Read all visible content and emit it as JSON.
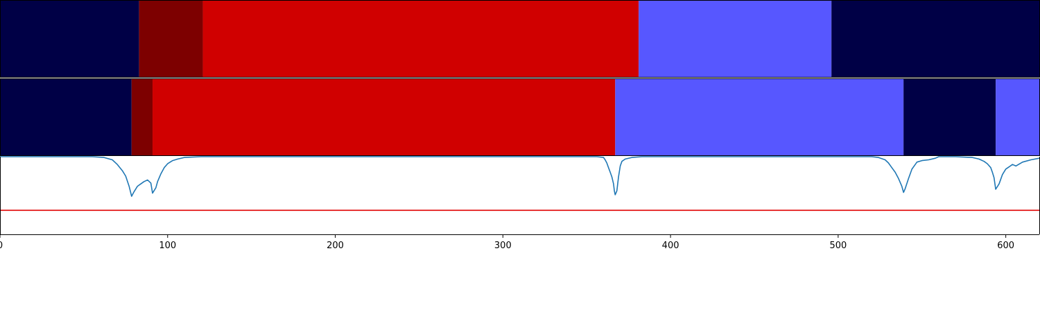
{
  "chart_data": {
    "type": "segmentation-timeline",
    "xlim": [
      0,
      620
    ],
    "x_ticks": [
      0,
      100,
      200,
      300,
      400,
      500,
      600
    ],
    "x_tick_labels": [
      "0",
      "100",
      "200",
      "300",
      "400",
      "500",
      "600"
    ],
    "colors": {
      "navy": "#000046",
      "darkred": "#7d0000",
      "red": "#d00000",
      "blue": "#5757ff",
      "line": "#1f77b4",
      "threshold": "#e00000"
    },
    "tracks": [
      {
        "segments": [
          {
            "start": 0,
            "end": 83,
            "color": "navy"
          },
          {
            "start": 83,
            "end": 121,
            "color": "darkred"
          },
          {
            "start": 121,
            "end": 381,
            "color": "red"
          },
          {
            "start": 381,
            "end": 496,
            "color": "blue"
          },
          {
            "start": 496,
            "end": 620,
            "color": "navy"
          }
        ]
      },
      {
        "segments": [
          {
            "start": 0,
            "end": 78.5,
            "color": "navy"
          },
          {
            "start": 78.5,
            "end": 91,
            "color": "darkred"
          },
          {
            "start": 91,
            "end": 367,
            "color": "red"
          },
          {
            "start": 367,
            "end": 539,
            "color": "blue"
          },
          {
            "start": 539,
            "end": 594,
            "color": "navy"
          },
          {
            "start": 594,
            "end": 620,
            "color": "blue"
          }
        ]
      }
    ],
    "signal": {
      "ylim": [
        0,
        1
      ],
      "threshold": 0.31,
      "x": [
        0,
        55,
        62,
        67,
        70,
        73,
        75,
        77,
        78.5,
        80,
        82,
        84,
        86,
        88,
        90,
        91,
        93,
        94,
        96,
        98,
        100,
        103,
        106,
        110,
        120,
        300,
        356,
        360,
        361,
        362,
        363,
        364,
        365,
        366,
        366.5,
        367,
        368,
        369,
        370,
        371,
        373,
        377,
        383,
        400,
        500,
        520,
        524,
        528,
        530,
        532,
        534,
        536,
        538,
        539,
        540,
        542,
        544,
        546,
        547,
        550,
        554,
        558,
        560,
        570,
        580,
        584,
        587,
        589,
        591,
        592,
        593,
        594,
        596,
        598,
        600,
        602,
        604,
        606,
        610,
        615,
        620
      ],
      "y": [
        1,
        1,
        0.99,
        0.96,
        0.9,
        0.82,
        0.75,
        0.62,
        0.49,
        0.55,
        0.62,
        0.65,
        0.68,
        0.7,
        0.66,
        0.53,
        0.6,
        0.68,
        0.78,
        0.86,
        0.91,
        0.95,
        0.97,
        0.99,
        1,
        1,
        1,
        0.99,
        0.96,
        0.92,
        0.86,
        0.8,
        0.74,
        0.65,
        0.56,
        0.51,
        0.56,
        0.74,
        0.88,
        0.94,
        0.97,
        0.99,
        1,
        1,
        1,
        1,
        0.99,
        0.96,
        0.92,
        0.86,
        0.8,
        0.72,
        0.62,
        0.54,
        0.59,
        0.72,
        0.84,
        0.9,
        0.93,
        0.95,
        0.96,
        0.98,
        1,
        1,
        0.99,
        0.97,
        0.94,
        0.91,
        0.86,
        0.8,
        0.73,
        0.58,
        0.65,
        0.77,
        0.84,
        0.87,
        0.9,
        0.88,
        0.93,
        0.96,
        0.98
      ]
    }
  }
}
